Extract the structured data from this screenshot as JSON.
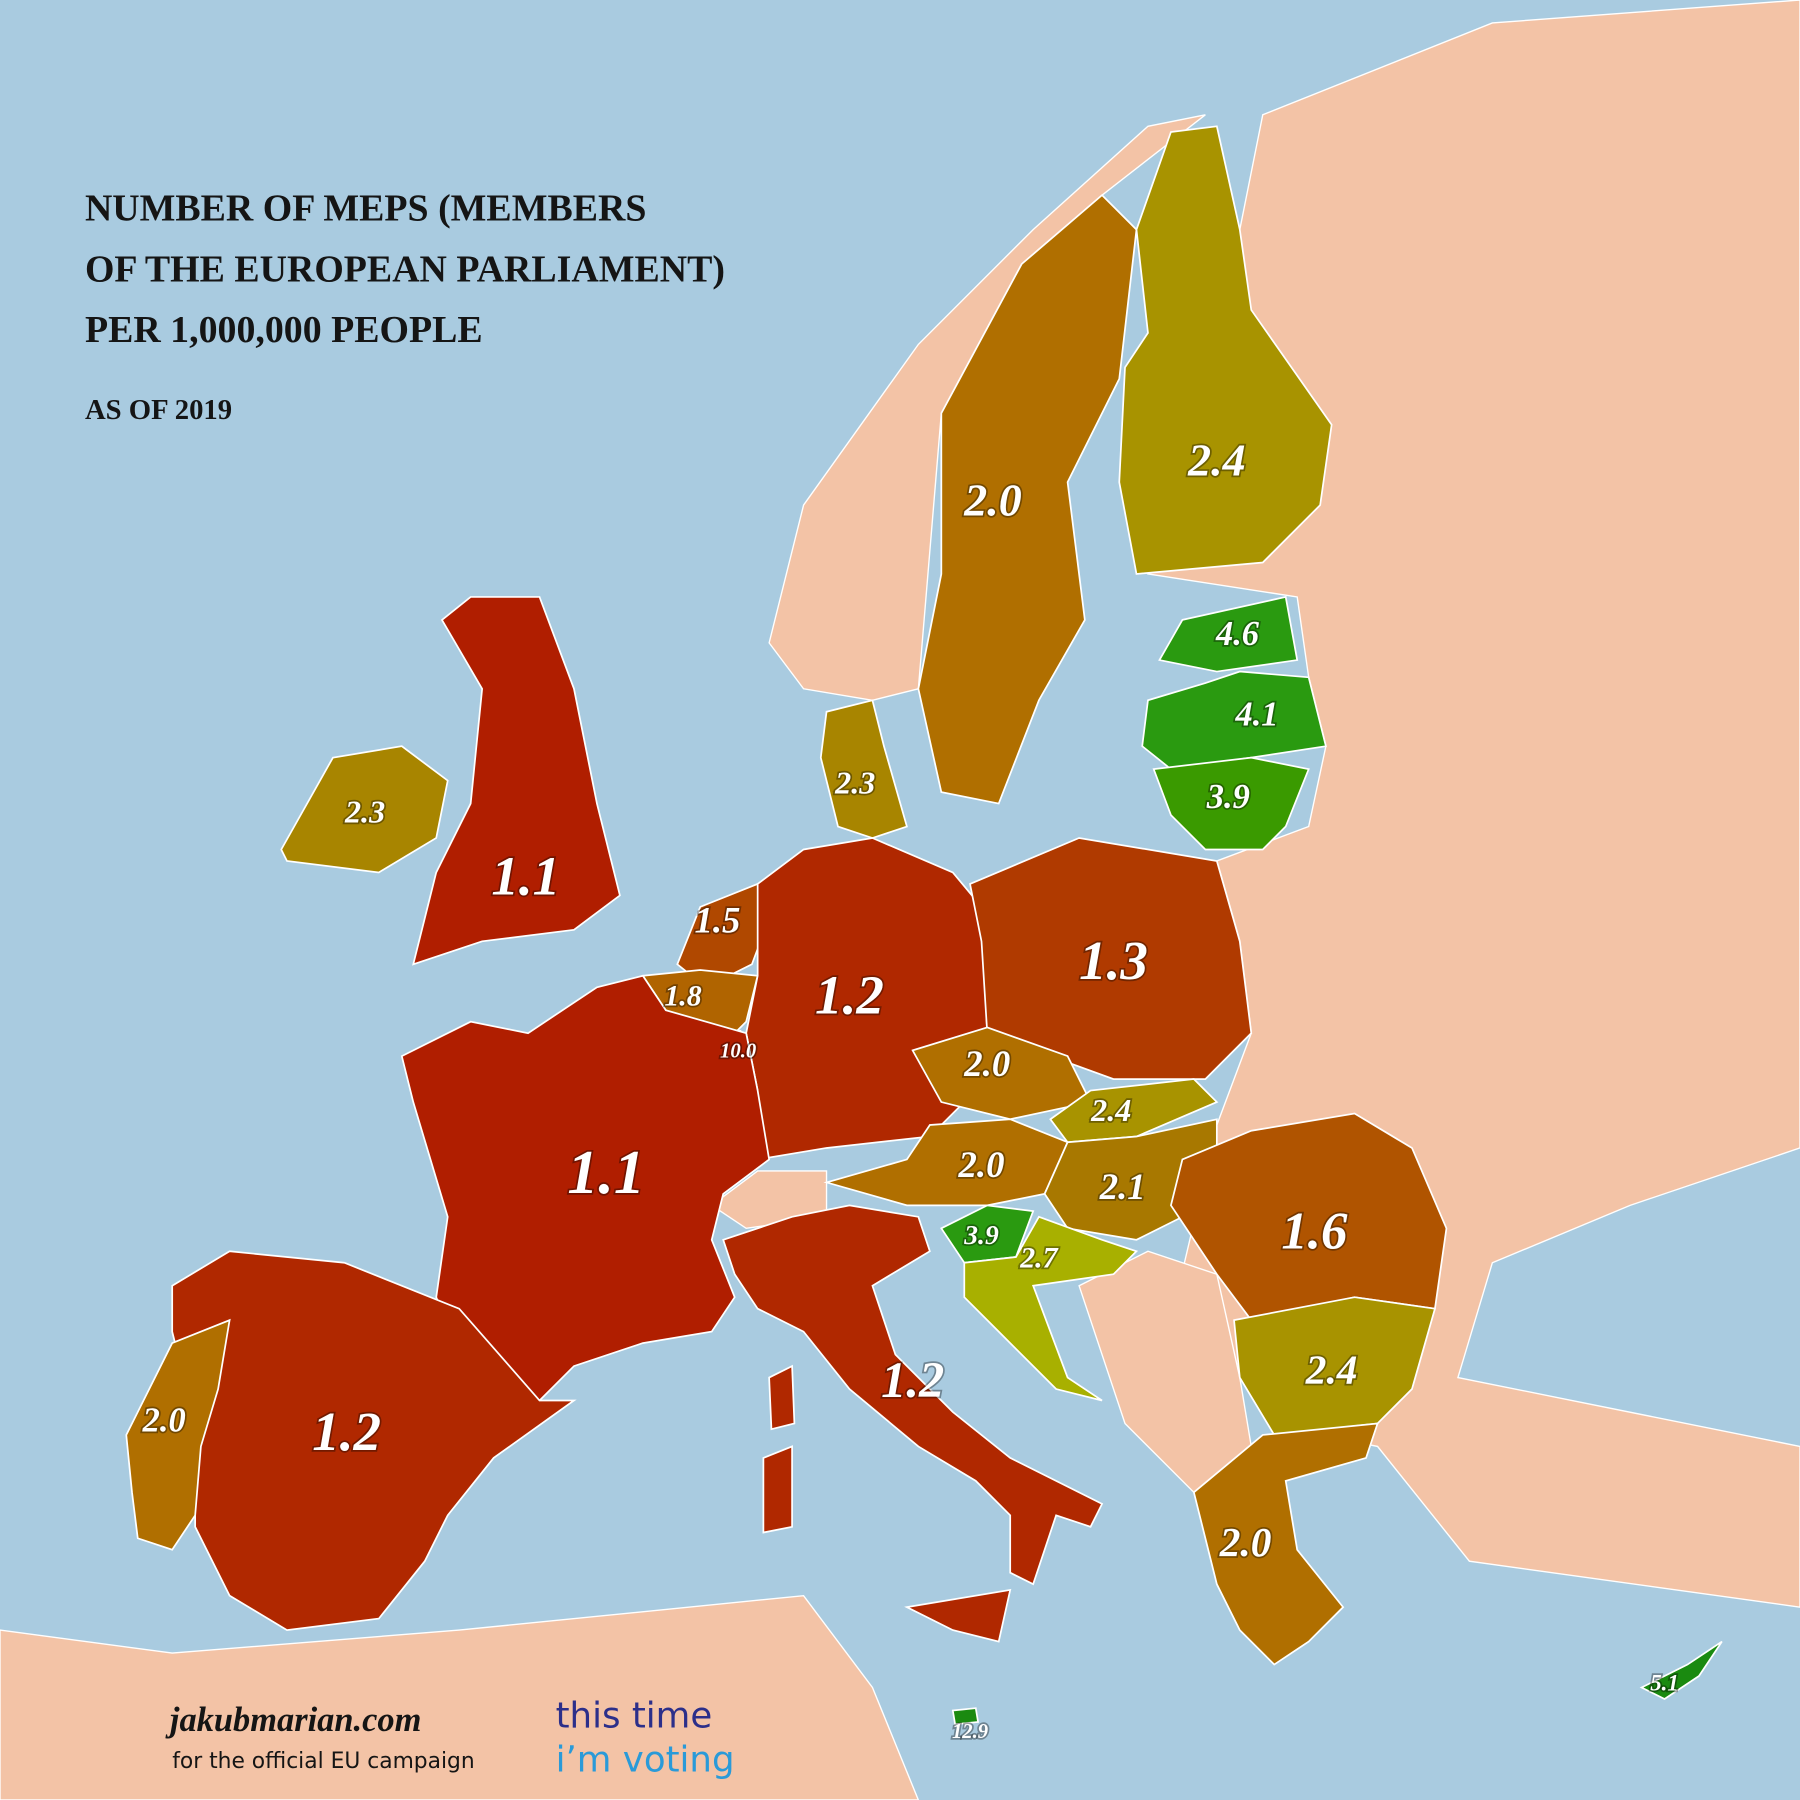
{
  "title_lines": [
    "NUMBER OF MEPS (MEMBERS",
    "OF THE EUROPEAN PARLIAMENT)",
    "PER 1,000,000 PEOPLE"
  ],
  "subtitle": "AS OF 2019",
  "regions": [
    {
      "label": "2.0",
      "color": "#b06f00"
    },
    {
      "label": "2.4",
      "color": "#a89300"
    },
    {
      "label": "4.6",
      "color": "#2a9a10"
    },
    {
      "label": "4.1",
      "color": "#2a9a10"
    },
    {
      "label": "3.9",
      "color": "#3a9a00"
    },
    {
      "label": "2.3",
      "color": "#a88500"
    },
    {
      "label": "2.3",
      "color": "#a88500"
    },
    {
      "label": "1.1",
      "color": "#b01e00"
    },
    {
      "label": "1.5",
      "color": "#b04800"
    },
    {
      "label": "1.8",
      "color": "#b06400"
    },
    {
      "label": "10.0",
      "color": "#1a8a10"
    },
    {
      "label": "1.2",
      "color": "#b02800"
    },
    {
      "label": "1.3",
      "color": "#b03a00"
    },
    {
      "label": "2.0",
      "color": "#b06f00"
    },
    {
      "label": "2.4",
      "color": "#a89300"
    },
    {
      "label": "2.0",
      "color": "#b06f00"
    },
    {
      "label": "2.1",
      "color": "#a87800"
    },
    {
      "label": "1.6",
      "color": "#b05400"
    },
    {
      "label": "3.9",
      "color": "#2a9a10"
    },
    {
      "label": "2.7",
      "color": "#a8b000"
    },
    {
      "label": "2.4",
      "color": "#a89300"
    },
    {
      "label": "2.0",
      "color": "#b06f00"
    },
    {
      "label": "1.1",
      "color": "#b01e00"
    },
    {
      "label": "1.2",
      "color": "#b02800"
    },
    {
      "label": "1.2",
      "color": "#b02800"
    },
    {
      "label": "2.0",
      "color": "#b06f00"
    },
    {
      "label": "12.9",
      "color": "#1a8a10"
    },
    {
      "label": "5.1",
      "color": "#1a8a10"
    }
  ],
  "footer": {
    "site": "jakubmarian.com",
    "note": "for the official EU campaign",
    "campaign_line1": "this time",
    "campaign_line2": "i’m voting"
  }
}
